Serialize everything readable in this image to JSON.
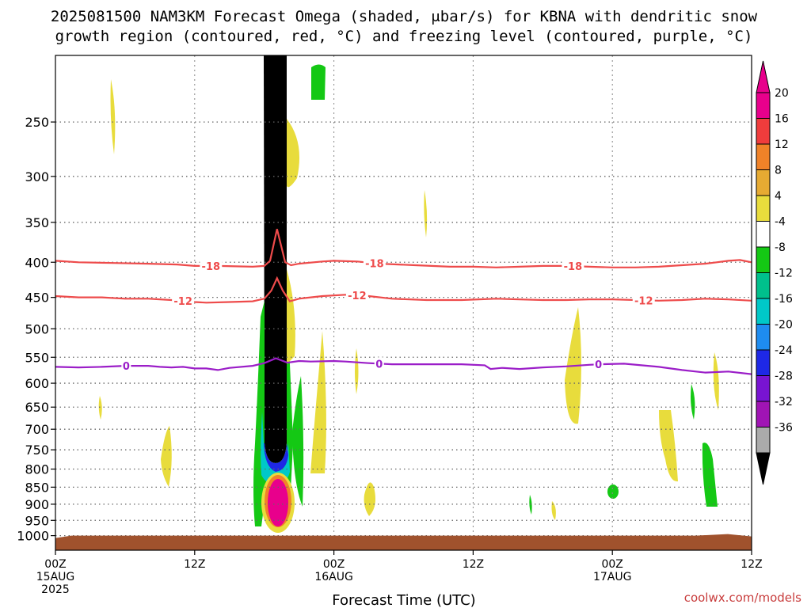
{
  "chart_data": {
    "type": "heatmap",
    "title_line1": "2025081500 NAM3KM Forecast Omega (shaded, μbar/s) for KBNA with dendritic snow",
    "title_line2": "growth region (contoured, red, °C) and freezing level (contoured, purple, °C)",
    "xlabel": "Forecast Time (UTC)",
    "credit": "coolwx.com/models",
    "x_range_hours": [
      0,
      60
    ],
    "y_range_hpa": [
      1050,
      200
    ],
    "y_ticks": [
      {
        "p": 250,
        "label": "250"
      },
      {
        "p": 300,
        "label": "300"
      },
      {
        "p": 350,
        "label": "350"
      },
      {
        "p": 400,
        "label": "400"
      },
      {
        "p": 450,
        "label": "450"
      },
      {
        "p": 500,
        "label": "500"
      },
      {
        "p": 550,
        "label": "550"
      },
      {
        "p": 600,
        "label": "600"
      },
      {
        "p": 650,
        "label": "650"
      },
      {
        "p": 700,
        "label": "700"
      },
      {
        "p": 750,
        "label": "750"
      },
      {
        "p": 800,
        "label": "800"
      },
      {
        "p": 850,
        "label": "850"
      },
      {
        "p": 900,
        "label": "900"
      },
      {
        "p": 950,
        "label": "950"
      },
      {
        "p": 1000,
        "label": "1000"
      }
    ],
    "x_ticks": [
      {
        "h": 0,
        "label": "00Z",
        "label2": "15AUG",
        "label3": "2025"
      },
      {
        "h": 12,
        "label": "12Z",
        "label2": "",
        "label3": ""
      },
      {
        "h": 24,
        "label": "00Z",
        "label2": "16AUG",
        "label3": ""
      },
      {
        "h": 36,
        "label": "12Z",
        "label2": "",
        "label3": ""
      },
      {
        "h": 48,
        "label": "00Z",
        "label2": "17AUG",
        "label3": ""
      },
      {
        "h": 60,
        "label": "12Z",
        "label2": "",
        "label3": ""
      }
    ],
    "grid": true,
    "colorbar": {
      "placement": "right",
      "levels": [
        {
          "label": "20",
          "color": "#e8008c"
        },
        {
          "label": "16",
          "color": "#f03c3c"
        },
        {
          "label": "12",
          "color": "#f08228"
        },
        {
          "label": "8",
          "color": "#e6aa32"
        },
        {
          "label": "4",
          "color": "#e8dc3c"
        },
        {
          "label": "-4",
          "color": "#ffffff"
        },
        {
          "label": "-8",
          "color": "#14c814"
        },
        {
          "label": "-12",
          "color": "#00c08c"
        },
        {
          "label": "-16",
          "color": "#00c8c8"
        },
        {
          "label": "-20",
          "color": "#1e8cf0"
        },
        {
          "label": "-24",
          "color": "#1e28e6"
        },
        {
          "label": "-28",
          "color": "#7814d2"
        },
        {
          "label": "-32",
          "color": "#a014b4"
        },
        {
          "label": "-36",
          "color": "#aaaaaa"
        }
      ],
      "top_triangle_color": "#e8008c",
      "bottom_triangle_color": "#000000"
    },
    "contours": [
      {
        "name": "-18",
        "color": "#ee4b4b",
        "labels": [
          {
            "h": 13.4,
            "text": "-18"
          },
          {
            "h": 27.5,
            "text": "-18"
          },
          {
            "h": 44.6,
            "text": "-18"
          }
        ],
        "points": [
          [
            0,
            398
          ],
          [
            2,
            400
          ],
          [
            5,
            401
          ],
          [
            8,
            402
          ],
          [
            10.5,
            403
          ],
          [
            12,
            405
          ],
          [
            14,
            405
          ],
          [
            17,
            406
          ],
          [
            18,
            405
          ],
          [
            18.5,
            398
          ],
          [
            19.1,
            358
          ],
          [
            19.8,
            400
          ],
          [
            20.3,
            404
          ],
          [
            21,
            402
          ],
          [
            23,
            399
          ],
          [
            24,
            398
          ],
          [
            26,
            399
          ],
          [
            28,
            402
          ],
          [
            31,
            404
          ],
          [
            34,
            406
          ],
          [
            36,
            406
          ],
          [
            38,
            407
          ],
          [
            40,
            406
          ],
          [
            42,
            405
          ],
          [
            44,
            405
          ],
          [
            46,
            406
          ],
          [
            48,
            407
          ],
          [
            50,
            407
          ],
          [
            52,
            406
          ],
          [
            54,
            404
          ],
          [
            56,
            402
          ],
          [
            57,
            400
          ],
          [
            58,
            398
          ],
          [
            59,
            397
          ],
          [
            60,
            400
          ]
        ]
      },
      {
        "name": "-12",
        "color": "#ee4b4b",
        "labels": [
          {
            "h": 11,
            "text": "-12"
          },
          {
            "h": 26,
            "text": "-12"
          },
          {
            "h": 50.7,
            "text": "-12"
          }
        ],
        "points": [
          [
            0,
            448
          ],
          [
            2,
            450
          ],
          [
            4,
            450
          ],
          [
            6,
            452
          ],
          [
            8,
            452
          ],
          [
            10,
            454
          ],
          [
            12,
            457
          ],
          [
            13,
            458
          ],
          [
            15,
            457
          ],
          [
            17,
            456
          ],
          [
            18,
            452
          ],
          [
            18.6,
            440
          ],
          [
            19.1,
            422
          ],
          [
            19.6,
            440
          ],
          [
            20.2,
            456
          ],
          [
            21,
            452
          ],
          [
            23,
            448
          ],
          [
            25,
            446
          ],
          [
            27,
            448
          ],
          [
            29,
            452
          ],
          [
            32,
            454
          ],
          [
            35,
            454
          ],
          [
            38,
            452
          ],
          [
            40,
            453
          ],
          [
            42,
            454
          ],
          [
            44,
            454
          ],
          [
            46,
            453
          ],
          [
            48,
            453
          ],
          [
            50,
            454
          ],
          [
            52,
            455
          ],
          [
            54,
            454
          ],
          [
            56,
            452
          ],
          [
            58,
            453
          ],
          [
            60,
            455
          ]
        ]
      },
      {
        "name": "0",
        "color": "#9b1ec8",
        "labels": [
          {
            "h": 6.1,
            "text": "0"
          },
          {
            "h": 27.9,
            "text": "0"
          },
          {
            "h": 46.8,
            "text": "0"
          }
        ],
        "points": [
          [
            0,
            568
          ],
          [
            2,
            569
          ],
          [
            4,
            568
          ],
          [
            6,
            566
          ],
          [
            8,
            566
          ],
          [
            9,
            568
          ],
          [
            10,
            569
          ],
          [
            11,
            568
          ],
          [
            12,
            571
          ],
          [
            13,
            571
          ],
          [
            14,
            574
          ],
          [
            15,
            570
          ],
          [
            17,
            566
          ],
          [
            18,
            561
          ],
          [
            19,
            552
          ],
          [
            20,
            560
          ],
          [
            21,
            557
          ],
          [
            22,
            558
          ],
          [
            24,
            557
          ],
          [
            25,
            558
          ],
          [
            27,
            561
          ],
          [
            29,
            563
          ],
          [
            32,
            563
          ],
          [
            35,
            563
          ],
          [
            37,
            565
          ],
          [
            37.5,
            572
          ],
          [
            38.5,
            570
          ],
          [
            40,
            572
          ],
          [
            42,
            569
          ],
          [
            44,
            567
          ],
          [
            46,
            564
          ],
          [
            47,
            563
          ],
          [
            49,
            562
          ],
          [
            52,
            568
          ],
          [
            54,
            574
          ],
          [
            56,
            579
          ],
          [
            58,
            577
          ],
          [
            60,
            582
          ]
        ]
      }
    ],
    "ground_pressure_hpa": 1000
  }
}
